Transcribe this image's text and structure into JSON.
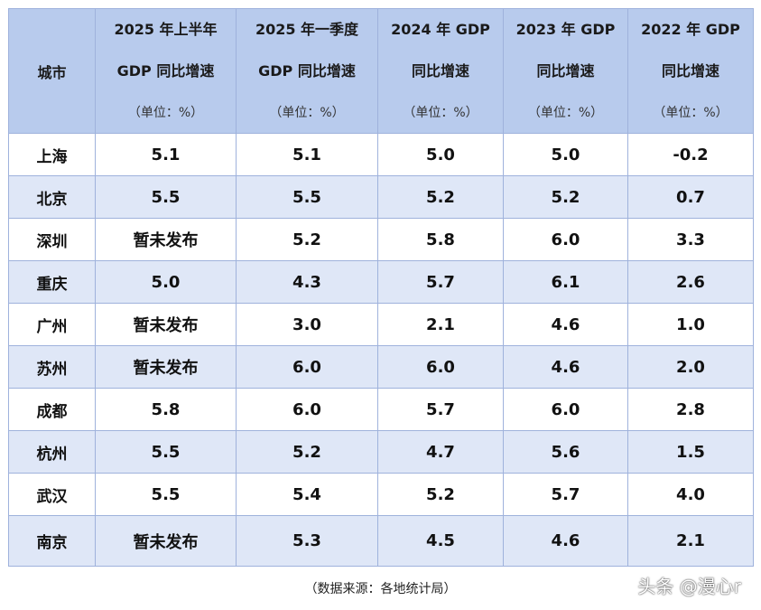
{
  "header": {
    "city": "城市",
    "cols": [
      {
        "line1": "2025 年上半年",
        "line2": "GDP 同比增速",
        "unit": "（单位：%）"
      },
      {
        "line1": "2025 年一季度",
        "line2": "GDP 同比增速",
        "unit": "（单位：%）"
      },
      {
        "line1": "2024 年 GDP",
        "line2": "同比增速",
        "unit": "（单位：%）"
      },
      {
        "line1": "2023 年 GDP",
        "line2": "同比增速",
        "unit": "（单位：%）"
      },
      {
        "line1": "2022 年 GDP",
        "line2": "同比增速",
        "unit": "（单位：%）"
      }
    ]
  },
  "rows": [
    {
      "city": "上海",
      "v": [
        "5.1",
        "5.1",
        "5.0",
        "5.0",
        "-0.2"
      ]
    },
    {
      "city": "北京",
      "v": [
        "5.5",
        "5.5",
        "5.2",
        "5.2",
        "0.7"
      ]
    },
    {
      "city": "深圳",
      "v": [
        "暂未发布",
        "5.2",
        "5.8",
        "6.0",
        "3.3"
      ]
    },
    {
      "city": "重庆",
      "v": [
        "5.0",
        "4.3",
        "5.7",
        "6.1",
        "2.6"
      ]
    },
    {
      "city": "广州",
      "v": [
        "暂未发布",
        "3.0",
        "2.1",
        "4.6",
        "1.0"
      ]
    },
    {
      "city": "苏州",
      "v": [
        "暂未发布",
        "6.0",
        "6.0",
        "4.6",
        "2.0"
      ]
    },
    {
      "city": "成都",
      "v": [
        "5.8",
        "6.0",
        "5.7",
        "6.0",
        "2.8"
      ]
    },
    {
      "city": "杭州",
      "v": [
        "5.5",
        "5.2",
        "4.7",
        "5.6",
        "1.5"
      ]
    },
    {
      "city": "武汉",
      "v": [
        "5.5",
        "5.4",
        "5.2",
        "5.7",
        "4.0"
      ]
    },
    {
      "city": "南京",
      "v": [
        "暂未发布",
        "5.3",
        "4.5",
        "4.6",
        "2.1"
      ]
    }
  ],
  "source": "（数据来源：各地统计局）",
  "watermark": "头条 @漫心r"
}
